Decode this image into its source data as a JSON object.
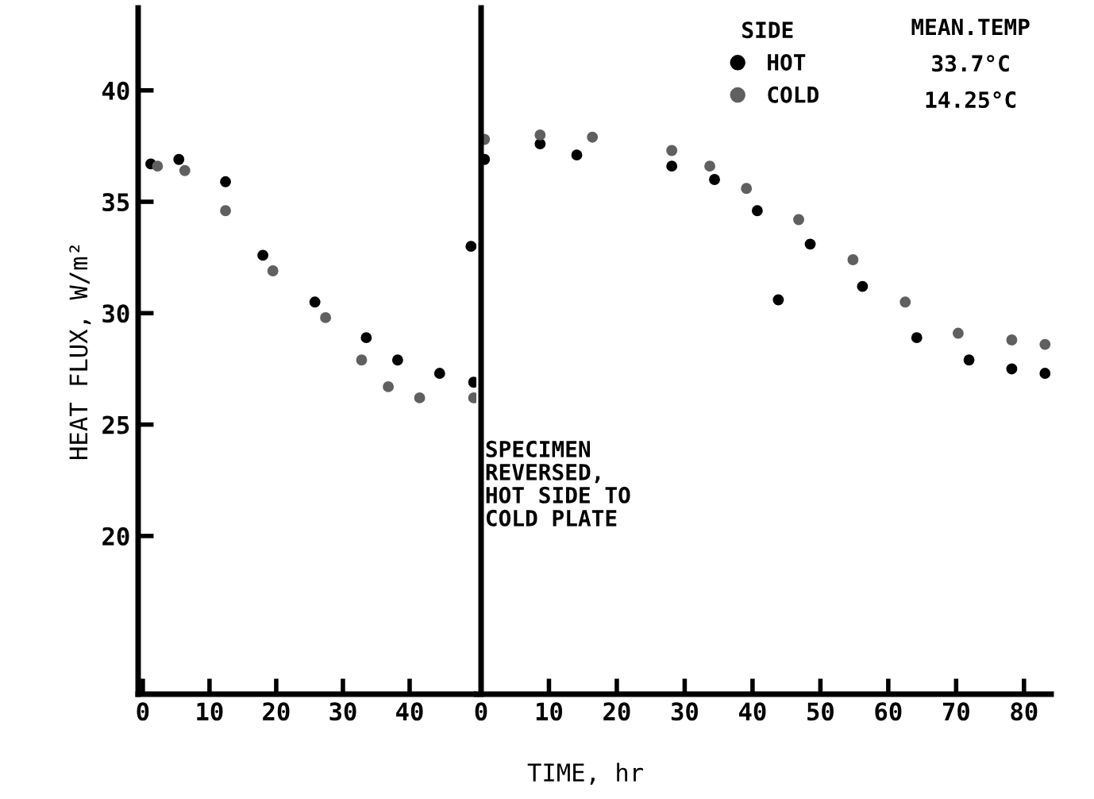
{
  "chart_data": [
    {
      "type": "scatter",
      "ylabel": "HEAT FLUX, W/m²",
      "xlim": [
        -0.7,
        50
      ],
      "ylim": [
        12.9,
        43.7
      ],
      "xticks": [
        0,
        10,
        20,
        30,
        40
      ],
      "yticks": [
        20,
        25,
        30,
        35,
        40
      ],
      "marker": "circle",
      "grid": false,
      "legend": false,
      "series": [
        {
          "color": "#000000",
          "x": [
            1.2,
            5.4,
            12.4,
            18,
            25.8,
            33.5,
            38.2,
            44.5,
            49.6,
            49.2
          ],
          "values": [
            36.7,
            36.9,
            35.9,
            32.6,
            30.5,
            28.9,
            27.9,
            27.3,
            26.9,
            33.0
          ]
        },
        {
          "color": "#606060",
          "x": [
            2.2,
            6.3,
            12.4,
            19.5,
            27.4,
            32.8,
            36.8,
            41.5,
            49.6
          ],
          "values": [
            36.6,
            36.4,
            34.6,
            31.9,
            29.8,
            27.9,
            26.7,
            26.2,
            26.2
          ]
        }
      ]
    },
    {
      "type": "scatter",
      "xlabel": "TIME, hr",
      "legend_title": "SIDE",
      "xlim": [
        -0.7,
        84
      ],
      "ylim": [
        12.9,
        43.7
      ],
      "xticks": [
        0,
        10,
        20,
        30,
        40,
        50,
        60,
        70,
        80
      ],
      "yticks": [
        20,
        25,
        30,
        35,
        40
      ],
      "tick_labels": "x",
      "marker": "circle",
      "grid": false,
      "legend": "top right",
      "annotations": [
        "SPECIMEN\nREVERSED,\nHOT SIDE TO\nCOLD PLATE",
        "MEAN.TEMP",
        "33.7°C",
        "14.25°C"
      ],
      "ref_lines": [
        {
          "axis": "x",
          "value": 0,
          "color": "#000000"
        }
      ],
      "series": [
        {
          "name": "HOT",
          "color": "#000000",
          "x": [
            0.5,
            8.7,
            14.1,
            28.1,
            34.4,
            40.7,
            48.5,
            56.2,
            64.2,
            71.9,
            78.2,
            83.1,
            43.8
          ],
          "values": [
            36.9,
            37.6,
            37.1,
            36.6,
            36.0,
            34.6,
            33.1,
            31.2,
            28.9,
            27.9,
            27.5,
            27.3,
            30.6
          ]
        },
        {
          "name": "COLD",
          "color": "#606060",
          "x": [
            0.5,
            8.7,
            16.4,
            28.1,
            33.7,
            39.1,
            46.8,
            54.8,
            62.5,
            70.3,
            78.2,
            83.1
          ],
          "values": [
            37.8,
            38.0,
            37.9,
            37.3,
            36.6,
            35.6,
            34.2,
            32.4,
            30.5,
            29.1,
            28.8,
            28.6
          ]
        }
      ]
    }
  ]
}
